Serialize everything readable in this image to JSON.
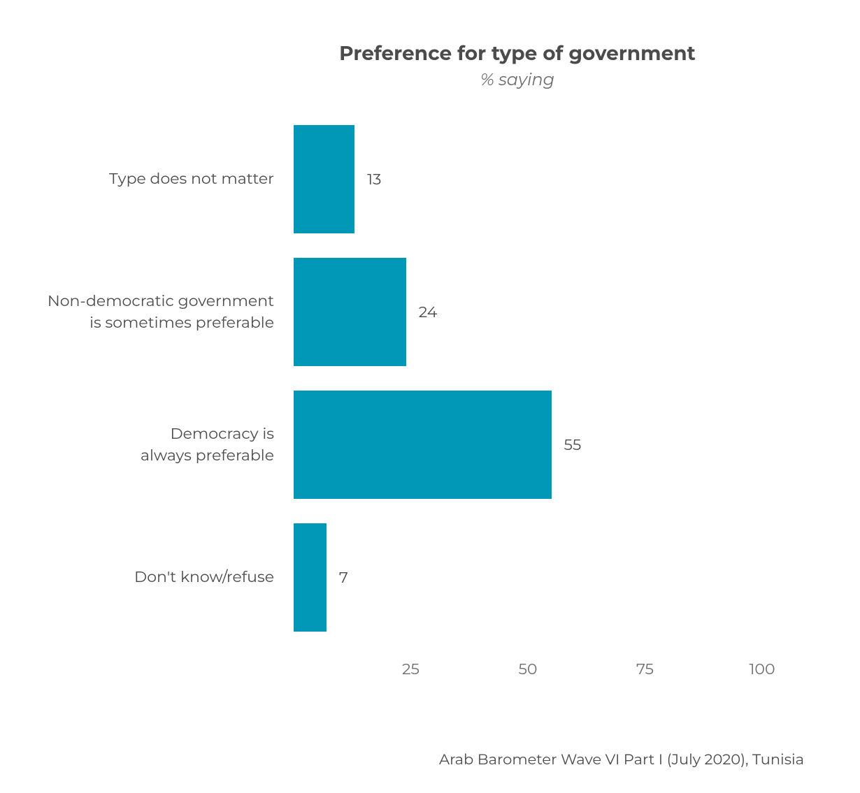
{
  "chart": {
    "type": "bar-horizontal",
    "title": "Preference for type of government",
    "subtitle": "% saying",
    "title_fontsize": 28,
    "title_color": "#4b4b4b",
    "subtitle_fontsize": 24,
    "subtitle_color": "#6d6d6d",
    "background_color": "#ffffff",
    "bar_color": "#0098b6",
    "label_color": "#4b4b4b",
    "value_color": "#4b4b4b",
    "axis_tick_color": "#6d6d6d",
    "label_fontsize": 22,
    "value_fontsize": 22,
    "tick_fontsize": 22,
    "footnote_fontsize": 21,
    "footnote_color": "#4b4b4b",
    "xlim": [
      0,
      100
    ],
    "xticks": [
      25,
      50,
      75,
      100
    ],
    "bar_height_pct": 20,
    "bar_gap_pct": 5,
    "categories": [
      {
        "label_lines": [
          "Type does not matter"
        ],
        "value": 13
      },
      {
        "label_lines": [
          "Non-democratic government",
          "is sometimes preferable"
        ],
        "value": 24
      },
      {
        "label_lines": [
          "Democracy is",
          "always preferable"
        ],
        "value": 55
      },
      {
        "label_lines": [
          "Don't know/refuse"
        ],
        "value": 7
      }
    ],
    "footnote": "Arab Barometer Wave VI Part I (July 2020), Tunisia"
  }
}
